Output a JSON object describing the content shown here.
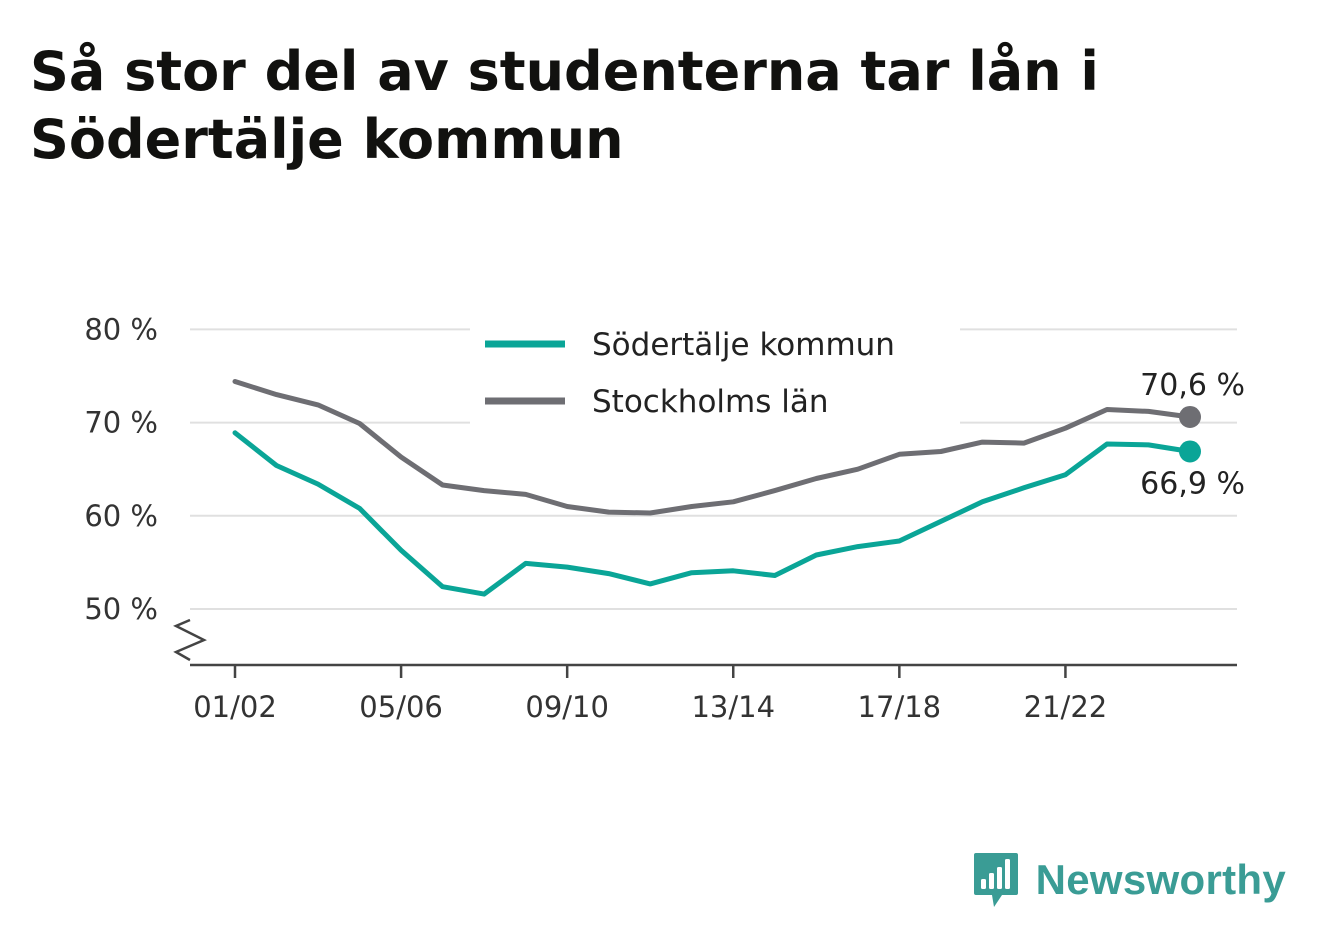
{
  "title": "Så stor del av studenterna tar lån i Södertälje kommun",
  "brand": {
    "name": "Newsworthy",
    "icon": "newsworthy-logo-icon"
  },
  "colors": {
    "sodertalje": "#0aa597",
    "stockholm": "#6e6e73",
    "grid": "#e0e0e0",
    "axis": "#444444"
  },
  "chart_data": {
    "type": "line",
    "title": "Så stor del av studenterna tar lån i Södertälje kommun",
    "x": [
      "01/02",
      "02/03",
      "03/04",
      "04/05",
      "05/06",
      "06/07",
      "07/08",
      "08/09",
      "09/10",
      "10/11",
      "11/12",
      "12/13",
      "13/14",
      "14/15",
      "15/16",
      "16/17",
      "17/18",
      "18/19",
      "19/20",
      "20/21",
      "21/22",
      "22/23",
      "23/24",
      "24/25"
    ],
    "x_tick_labels": [
      "01/02",
      "05/06",
      "09/10",
      "13/14",
      "17/18",
      "21/22"
    ],
    "y_tick_labels": [
      "50 %",
      "60 %",
      "70 %",
      "80 %"
    ],
    "y_ticks": [
      50,
      60,
      70,
      80
    ],
    "ylim": [
      44,
      81
    ],
    "y_axis_break": true,
    "grid": true,
    "legend_position": "top-center",
    "series": [
      {
        "name": "Södertälje kommun",
        "color": "#0aa597",
        "values": [
          68.9,
          65.4,
          63.4,
          60.8,
          56.3,
          52.4,
          51.6,
          54.9,
          54.5,
          53.8,
          52.7,
          53.9,
          54.1,
          53.6,
          55.8,
          56.7,
          57.3,
          59.4,
          61.5,
          63.0,
          64.4,
          67.7,
          67.6,
          66.9
        ],
        "end_label": "66,9 %"
      },
      {
        "name": "Stockholms län",
        "color": "#6e6e73",
        "values": [
          74.4,
          73.0,
          71.9,
          69.9,
          66.3,
          63.3,
          62.7,
          62.3,
          61.0,
          60.4,
          60.3,
          61.0,
          61.5,
          62.7,
          64.0,
          65.0,
          66.6,
          66.9,
          67.9,
          67.8,
          69.4,
          71.4,
          71.2,
          70.6
        ],
        "end_label": "70,6 %"
      }
    ]
  }
}
